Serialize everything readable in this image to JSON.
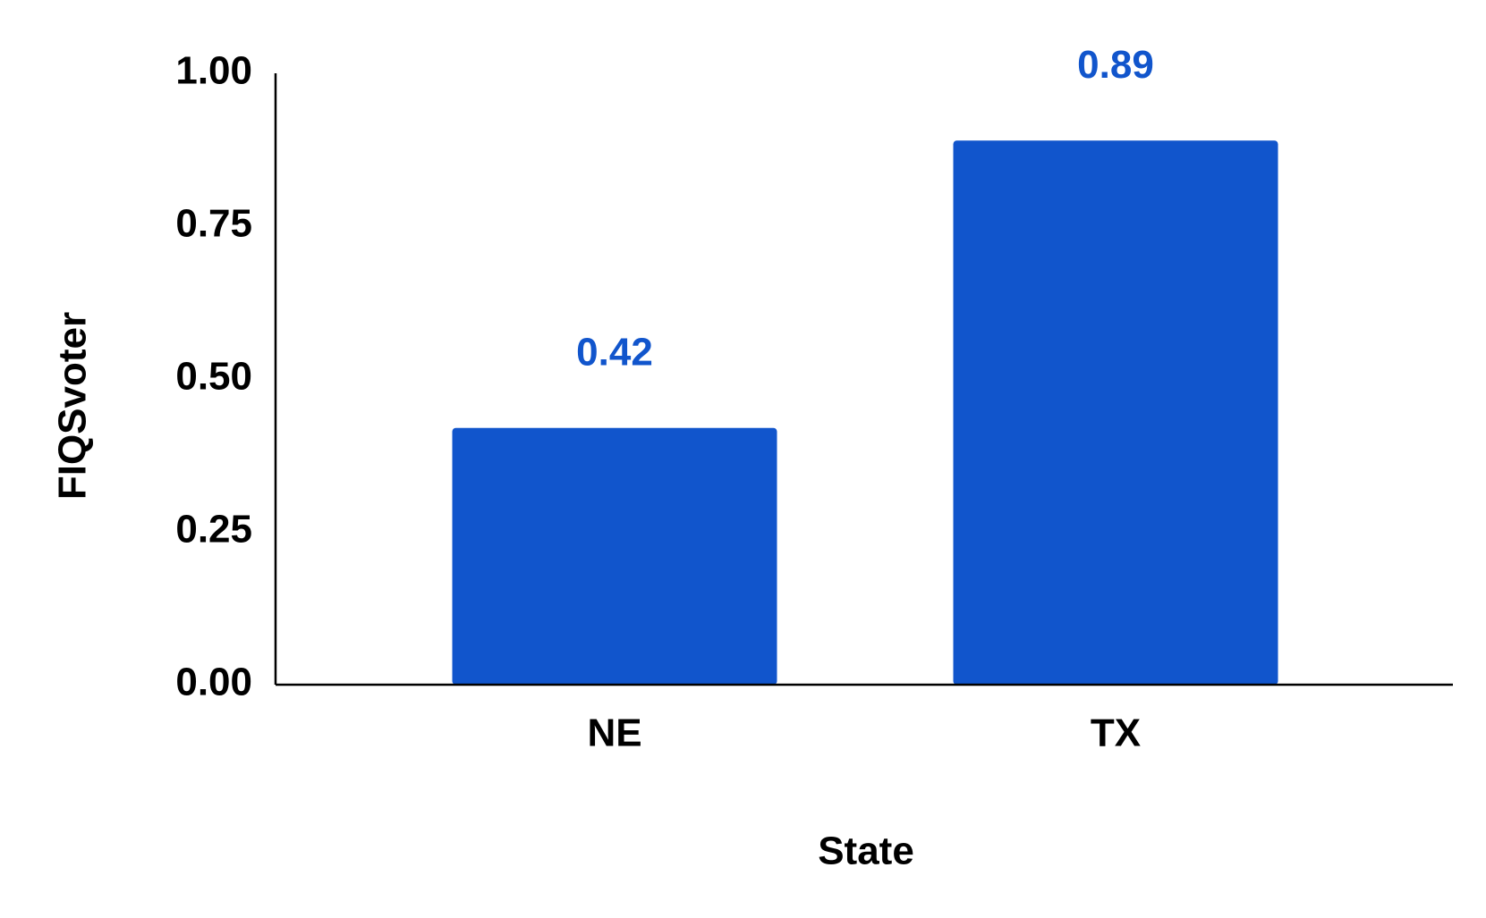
{
  "chart_data": {
    "type": "bar",
    "x_label": "State",
    "y_label": "FIQSvoter",
    "categories": [
      "NE",
      "TX"
    ],
    "values": [
      0.42,
      0.89
    ],
    "color": "#1155cc",
    "value_label_color": "#1155cc",
    "ylim": [
      0,
      1
    ],
    "yticks": [
      {
        "value": 0,
        "label": "0.00"
      },
      {
        "value": 0.25,
        "label": "0.25"
      },
      {
        "value": 0.5,
        "label": "0.50"
      },
      {
        "value": 0.75,
        "label": "0.75"
      },
      {
        "value": 1,
        "label": "1.00"
      }
    ],
    "grid": false
  }
}
